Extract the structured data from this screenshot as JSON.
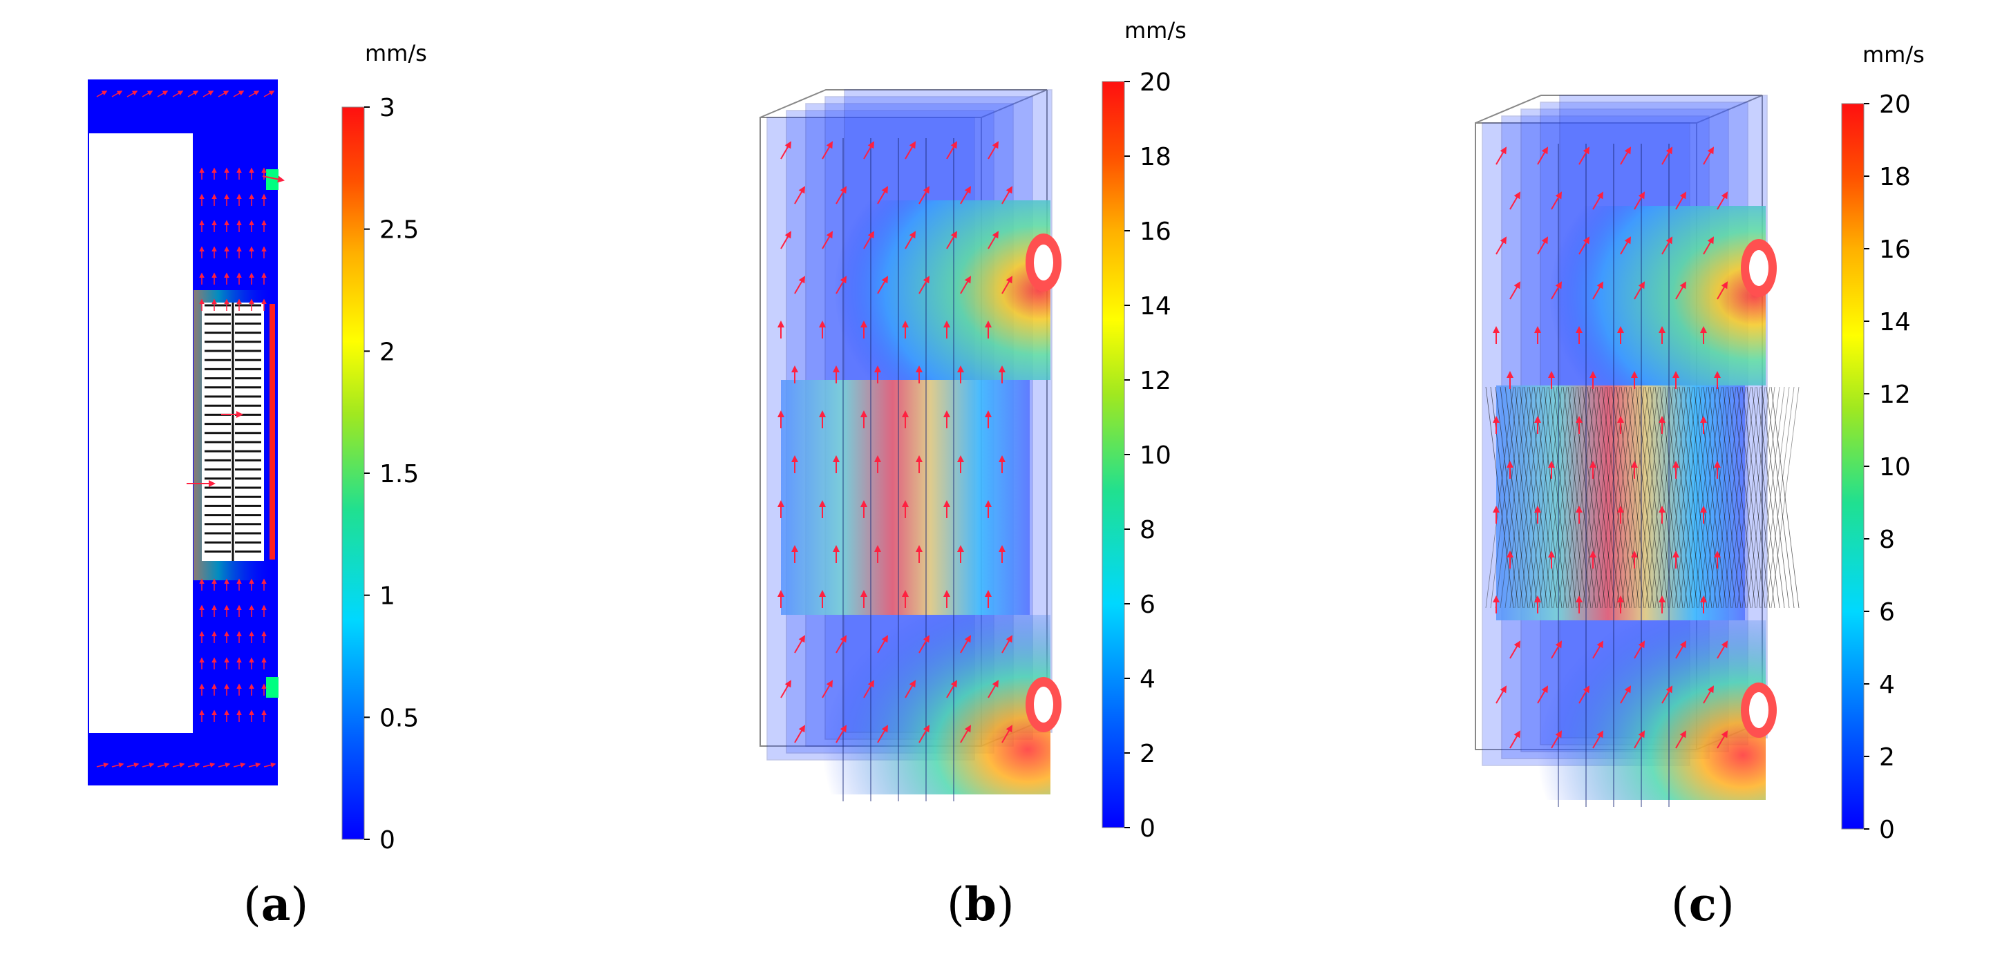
{
  "panels": [
    {
      "id": "a",
      "label_open": "(",
      "label_letter": "a",
      "label_close": ")",
      "colorbar": {
        "unit": "mm/s",
        "min": 0,
        "max": 3,
        "ticks": [
          "0",
          "0.5",
          "1",
          "1.5",
          "2",
          "2.5",
          "3"
        ]
      }
    },
    {
      "id": "b",
      "label_open": "(",
      "label_letter": "b",
      "label_close": ")",
      "colorbar": {
        "unit": "mm/s",
        "min": 0,
        "max": 20,
        "ticks": [
          "0",
          "2",
          "4",
          "6",
          "8",
          "10",
          "12",
          "14",
          "16",
          "18",
          "20"
        ]
      }
    },
    {
      "id": "c",
      "label_open": "(",
      "label_letter": "c",
      "label_close": ")",
      "colorbar": {
        "unit": "mm/s",
        "min": 0,
        "max": 20,
        "ticks": [
          "0",
          "2",
          "4",
          "6",
          "8",
          "10",
          "12",
          "14",
          "16",
          "18",
          "20"
        ]
      }
    }
  ],
  "colormap": [
    "#0000ff",
    "#0080ff",
    "#00e0e0",
    "#20d080",
    "#a0e020",
    "#ffff00",
    "#ffa000",
    "#ff4000",
    "#ff0000"
  ],
  "arrow_color": "#ff2040"
}
